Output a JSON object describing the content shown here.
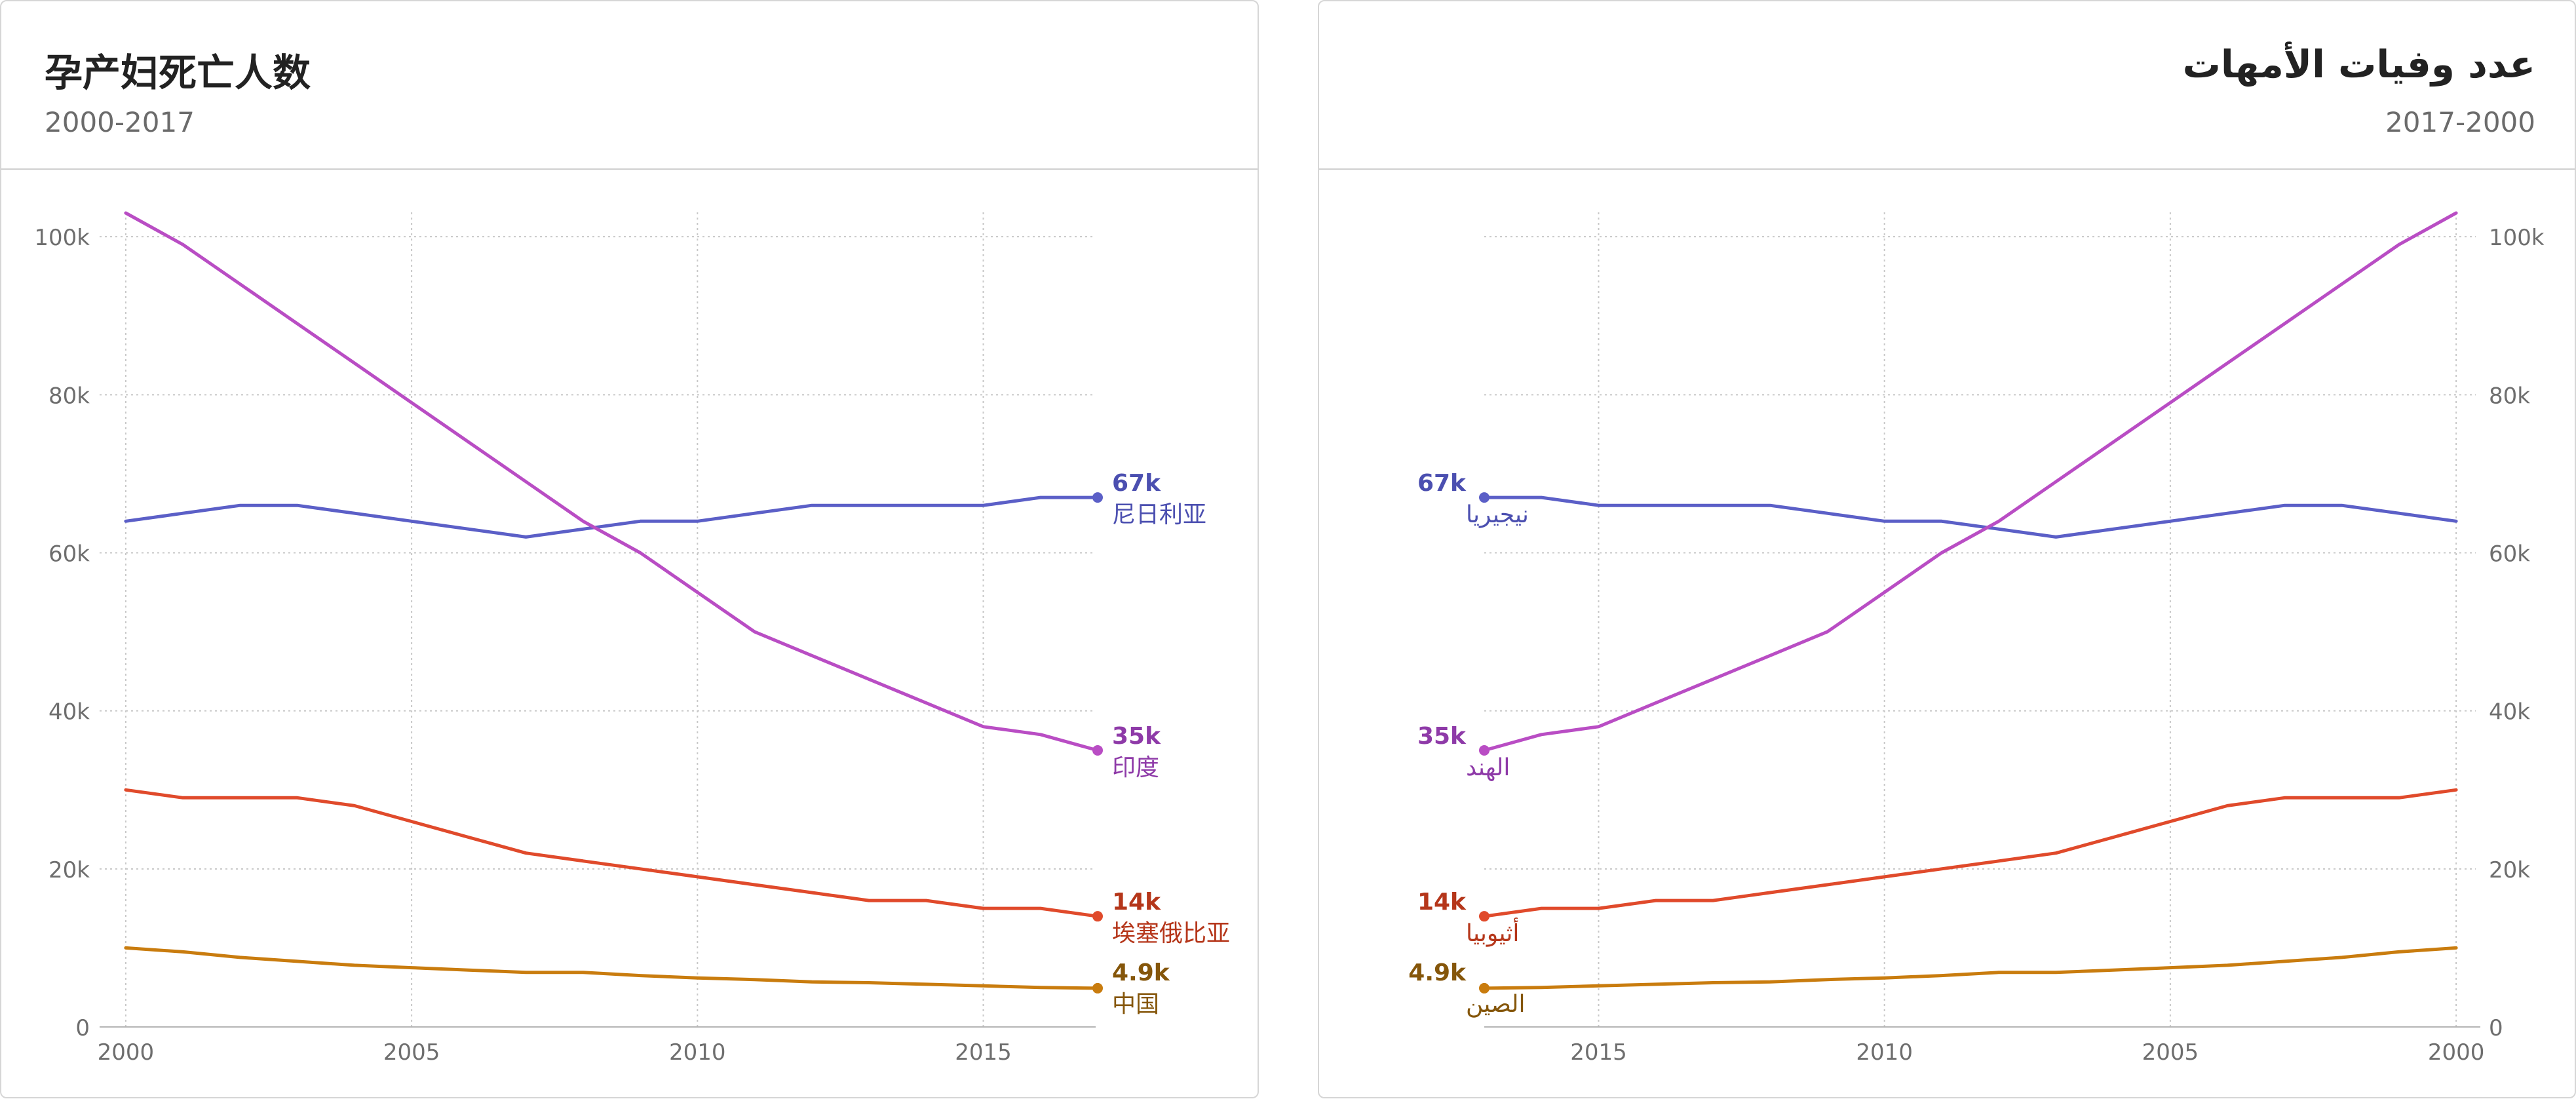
{
  "colors": {
    "nigeria": "#5b5fc7",
    "india": "#b94dc4",
    "ethiopia": "#e04a2b",
    "china": "#c97c0e",
    "nigeria_label": "#4b4fb0",
    "india_label": "#8e3aa8",
    "ethiopia_label": "#b5361a",
    "china_label": "#85560a"
  },
  "chart_data": [
    {
      "type": "line",
      "direction": "ltr",
      "title": "孕产妇死亡人数",
      "subtitle": "2000-2017",
      "xlabel": "",
      "ylabel": "",
      "x": [
        2000,
        2001,
        2002,
        2003,
        2004,
        2005,
        2006,
        2007,
        2008,
        2009,
        2010,
        2011,
        2012,
        2013,
        2014,
        2015,
        2016,
        2017
      ],
      "xlim": [
        1999.6,
        2017
      ],
      "ylim": [
        0,
        103000
      ],
      "x_ticks": [
        2000,
        2005,
        2010,
        2015
      ],
      "y_ticks": [
        0,
        20000,
        40000,
        60000,
        80000,
        100000
      ],
      "y_tick_labels": [
        "0",
        "20k",
        "40k",
        "60k",
        "80k",
        "100k"
      ],
      "y_axis_side": "left",
      "grid": true,
      "series": [
        {
          "key": "nigeria",
          "name": "尼日利亚",
          "end_label": "67k",
          "values": [
            64000,
            65000,
            66000,
            66000,
            65000,
            64000,
            63000,
            62000,
            63000,
            64000,
            64000,
            65000,
            66000,
            66000,
            66000,
            66000,
            67000,
            67000
          ]
        },
        {
          "key": "india",
          "name": "印度",
          "end_label": "35k",
          "values": [
            103000,
            99000,
            94000,
            89000,
            84000,
            79000,
            74000,
            69000,
            64000,
            60000,
            55000,
            50000,
            47000,
            44000,
            41000,
            38000,
            37000,
            35000
          ]
        },
        {
          "key": "ethiopia",
          "name": "埃塞俄比亚",
          "end_label": "14k",
          "values": [
            30000,
            29000,
            29000,
            29000,
            28000,
            26000,
            24000,
            22000,
            21000,
            20000,
            19000,
            18000,
            17000,
            16000,
            16000,
            15000,
            15000,
            14000
          ]
        },
        {
          "key": "china",
          "name": "中国",
          "end_label": "4.9k",
          "values": [
            10000,
            9500,
            8800,
            8300,
            7800,
            7500,
            7200,
            6900,
            6900,
            6500,
            6200,
            6000,
            5700,
            5600,
            5400,
            5200,
            5000,
            4900
          ]
        }
      ]
    },
    {
      "type": "line",
      "direction": "rtl",
      "title": "عدد وفيات الأمهات",
      "subtitle": "2017-2000",
      "xlabel": "",
      "ylabel": "",
      "x": [
        2000,
        2001,
        2002,
        2003,
        2004,
        2005,
        2006,
        2007,
        2008,
        2009,
        2010,
        2011,
        2012,
        2013,
        2014,
        2015,
        2016,
        2017
      ],
      "xlim": [
        1999.6,
        2017
      ],
      "ylim": [
        0,
        103000
      ],
      "x_ticks": [
        2000,
        2005,
        2010,
        2015
      ],
      "y_ticks": [
        0,
        20000,
        40000,
        60000,
        80000,
        100000
      ],
      "y_tick_labels": [
        "0",
        "20k",
        "40k",
        "60k",
        "80k",
        "100k"
      ],
      "y_axis_side": "right",
      "grid": true,
      "series": [
        {
          "key": "nigeria",
          "name": "نيجيريا",
          "end_label": "67k",
          "values": [
            64000,
            65000,
            66000,
            66000,
            65000,
            64000,
            63000,
            62000,
            63000,
            64000,
            64000,
            65000,
            66000,
            66000,
            66000,
            66000,
            67000,
            67000
          ]
        },
        {
          "key": "india",
          "name": "الهند",
          "end_label": "35k",
          "values": [
            103000,
            99000,
            94000,
            89000,
            84000,
            79000,
            74000,
            69000,
            64000,
            60000,
            55000,
            50000,
            47000,
            44000,
            41000,
            38000,
            37000,
            35000
          ]
        },
        {
          "key": "ethiopia",
          "name": "أثيوبيا",
          "end_label": "14k",
          "values": [
            30000,
            29000,
            29000,
            29000,
            28000,
            26000,
            24000,
            22000,
            21000,
            20000,
            19000,
            18000,
            17000,
            16000,
            16000,
            15000,
            15000,
            14000
          ]
        },
        {
          "key": "china",
          "name": "الصين",
          "end_label": "4.9k",
          "values": [
            10000,
            9500,
            8800,
            8300,
            7800,
            7500,
            7200,
            6900,
            6900,
            6500,
            6200,
            6000,
            5700,
            5600,
            5400,
            5200,
            5000,
            4900
          ]
        }
      ]
    }
  ]
}
